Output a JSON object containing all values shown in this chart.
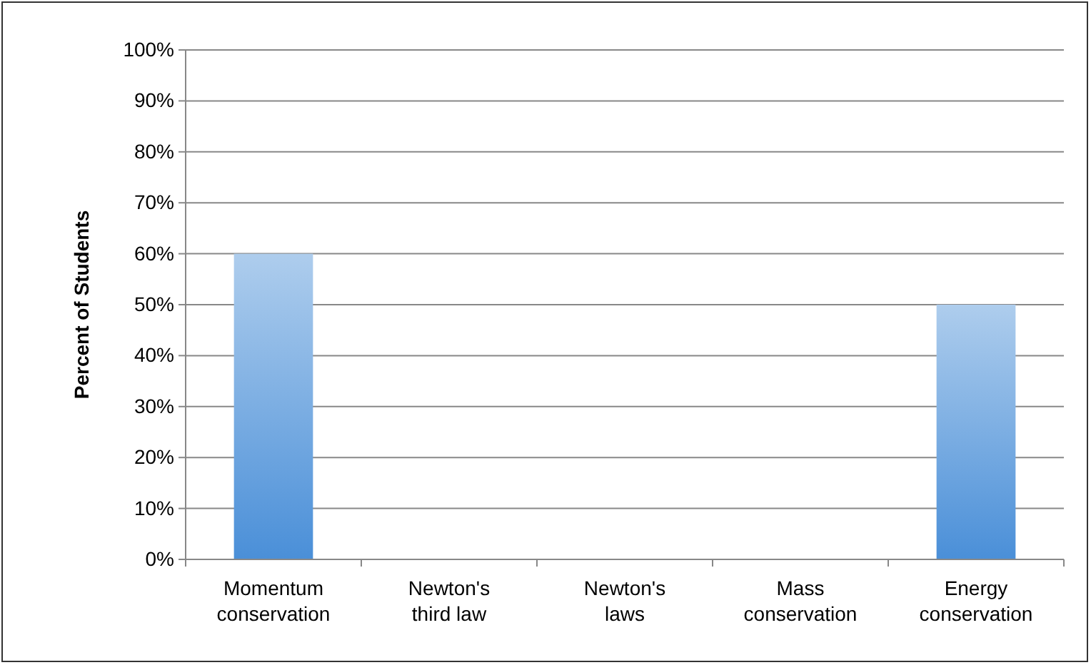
{
  "chart_data": {
    "type": "bar",
    "ylabel": "Percent of Students",
    "categories": [
      "Momentum conservation",
      "Newton's third law",
      "Newton's laws",
      "Mass conservation",
      "Energy conservation"
    ],
    "values": [
      60,
      0,
      0,
      0,
      50
    ],
    "color": "#4a8fd8",
    "ylim": [
      0,
      100
    ],
    "yticks": [
      {
        "value": 0,
        "label": "0%"
      },
      {
        "value": 10,
        "label": "10%"
      },
      {
        "value": 20,
        "label": "20%"
      },
      {
        "value": 30,
        "label": "30%"
      },
      {
        "value": 40,
        "label": "40%"
      },
      {
        "value": 50,
        "label": "50%"
      },
      {
        "value": 60,
        "label": "60%"
      },
      {
        "value": 70,
        "label": "70%"
      },
      {
        "value": 80,
        "label": "80%"
      },
      {
        "value": 90,
        "label": "90%"
      },
      {
        "value": 100,
        "label": "100%"
      }
    ],
    "grid": "y"
  }
}
